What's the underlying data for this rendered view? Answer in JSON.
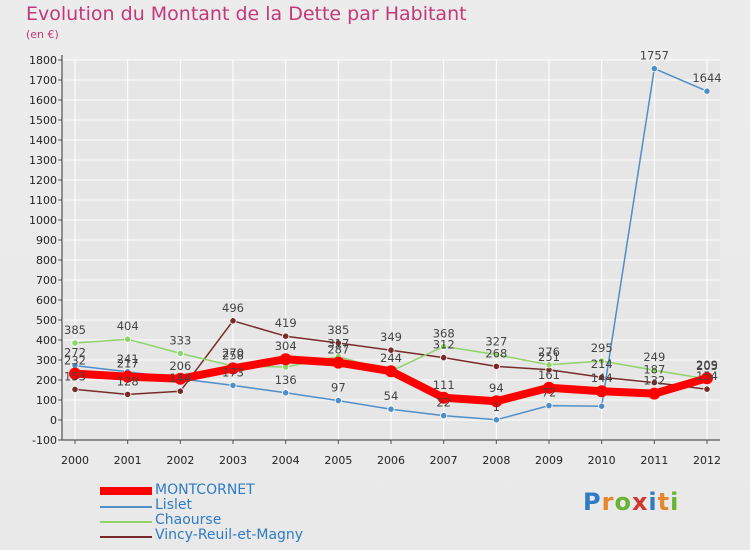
{
  "header": {
    "title": "Evolution du Montant de la Dette par Habitant",
    "subtitle": "(en €)"
  },
  "logo": {
    "letters": [
      "P",
      "r",
      "o",
      "x",
      "i",
      "t",
      "i"
    ],
    "colors": [
      "#2f7bc4",
      "#e8862b",
      "#67b435",
      "#d2372f",
      "#2f7bc4",
      "#e8862b",
      "#67b435"
    ]
  },
  "chart_data": {
    "type": "line",
    "title": "Evolution du Montant de la Dette par Habitant",
    "subtitle": "(en €)",
    "xlabel": "",
    "ylabel": "",
    "x": [
      "2000",
      "2001",
      "2002",
      "2003",
      "2004",
      "2005",
      "2006",
      "2007",
      "2008",
      "2009",
      "2010",
      "2011",
      "2012"
    ],
    "ylim": [
      -100,
      1800
    ],
    "yticks": [
      "-100",
      "0",
      "100",
      "200",
      "300",
      "400",
      "500",
      "600",
      "700",
      "800",
      "900",
      "1000",
      "1100",
      "1200",
      "1300",
      "1400",
      "1500",
      "1600",
      "1700",
      "1800"
    ],
    "grid": true,
    "legend_position": "bottom-left",
    "series": [
      {
        "name": "MONTCORNET",
        "color": "#ff0000",
        "width": 8,
        "values": [
          232,
          217,
          206,
          258,
          304,
          287,
          244,
          111,
          94,
          161,
          144,
          132,
          209
        ],
        "labels": [
          "232",
          "217",
          "206",
          "258",
          "304",
          "287",
          "244",
          "111",
          "94",
          "161",
          "144",
          "132",
          "209"
        ]
      },
      {
        "name": "Lislet",
        "color": "#4f8fc9",
        "width": 1.5,
        "values": [
          272,
          241,
          206,
          173,
          136,
          97,
          54,
          22,
          1,
          72,
          69,
          1757,
          1644
        ],
        "labels": [
          "272",
          "241",
          "",
          "173",
          "136",
          "97",
          "54",
          "22",
          "1",
          "72",
          "",
          "1757",
          "1644"
        ]
      },
      {
        "name": "Chaourse",
        "color": "#8fd46a",
        "width": 1.5,
        "values": [
          385,
          404,
          333,
          270,
          265,
          317,
          244,
          368,
          327,
          276,
          295,
          249,
          205
        ],
        "labels": [
          "385",
          "404",
          "333",
          "270",
          "",
          "317",
          "",
          "368",
          "327",
          "276",
          "295",
          "249",
          "205"
        ]
      },
      {
        "name": "Vincy-Reuil-et-Magny",
        "color": "#7a2a2a",
        "width": 1.5,
        "values": [
          153,
          128,
          144,
          496,
          419,
          385,
          349,
          312,
          268,
          251,
          214,
          187,
          154
        ],
        "labels": [
          "153",
          "128",
          "144",
          "496",
          "419",
          "385",
          "349",
          "312",
          "268",
          "251",
          "214",
          "187",
          "154"
        ]
      }
    ]
  }
}
